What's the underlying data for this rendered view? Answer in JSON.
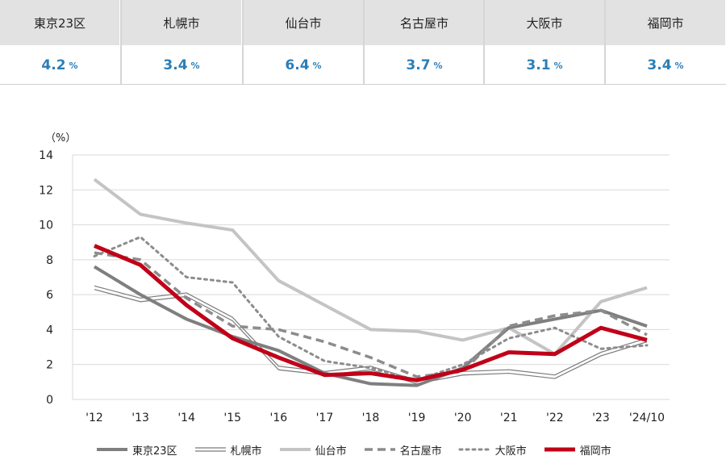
{
  "summary": {
    "cities": [
      {
        "name": "東京23区",
        "value": "4.2",
        "unit": "%"
      },
      {
        "name": "札幌市",
        "value": "3.4",
        "unit": "%"
      },
      {
        "name": "仙台市",
        "value": "6.4",
        "unit": "%"
      },
      {
        "name": "名古屋市",
        "value": "3.7",
        "unit": "%"
      },
      {
        "name": "大阪市",
        "value": "3.1",
        "unit": "%"
      },
      {
        "name": "福岡市",
        "value": "3.4",
        "unit": "%"
      }
    ]
  },
  "chart_data": {
    "type": "line",
    "ylabel": "（%）",
    "ylim": [
      0,
      14
    ],
    "yticks": [
      0,
      2,
      4,
      6,
      8,
      10,
      12,
      14
    ],
    "grid": true,
    "legend_position": "bottom",
    "categories": [
      "'12",
      "'13",
      "'14",
      "'15",
      "'16",
      "'17",
      "'18",
      "'19",
      "'20",
      "'21",
      "'22",
      "'23",
      "'24/10"
    ],
    "series": [
      {
        "name": "東京23区",
        "color": "#7f7f7f",
        "style": "solid-thick",
        "values": [
          7.6,
          6.0,
          4.6,
          3.6,
          2.8,
          1.5,
          0.9,
          0.8,
          1.8,
          4.1,
          4.6,
          5.1,
          4.2
        ]
      },
      {
        "name": "札幌市",
        "color": "#7a7a7a",
        "style": "double",
        "values": [
          6.4,
          5.7,
          6.0,
          4.6,
          1.8,
          1.5,
          1.8,
          1.0,
          1.5,
          1.6,
          1.3,
          2.6,
          3.4
        ]
      },
      {
        "name": "仙台市",
        "color": "#c4c4c4",
        "style": "solid-thick",
        "values": [
          12.6,
          10.6,
          10.1,
          9.7,
          6.8,
          5.4,
          4.0,
          3.9,
          3.4,
          4.1,
          2.6,
          5.6,
          6.4
        ]
      },
      {
        "name": "名古屋市",
        "color": "#8c8c8c",
        "style": "dashed",
        "values": [
          8.4,
          8.0,
          5.8,
          4.2,
          4.0,
          3.3,
          2.4,
          1.3,
          1.6,
          4.2,
          4.8,
          5.1,
          3.7
        ]
      },
      {
        "name": "大阪市",
        "color": "#8c8c8c",
        "style": "dotted",
        "values": [
          8.2,
          9.3,
          7.0,
          6.7,
          3.6,
          2.2,
          1.8,
          1.1,
          2.0,
          3.5,
          4.1,
          2.9,
          3.1
        ]
      },
      {
        "name": "福岡市",
        "color": "#c00018",
        "style": "bold",
        "values": [
          8.8,
          7.7,
          5.4,
          3.5,
          2.4,
          1.4,
          1.5,
          1.1,
          1.7,
          2.7,
          2.6,
          4.1,
          3.4
        ]
      }
    ]
  }
}
